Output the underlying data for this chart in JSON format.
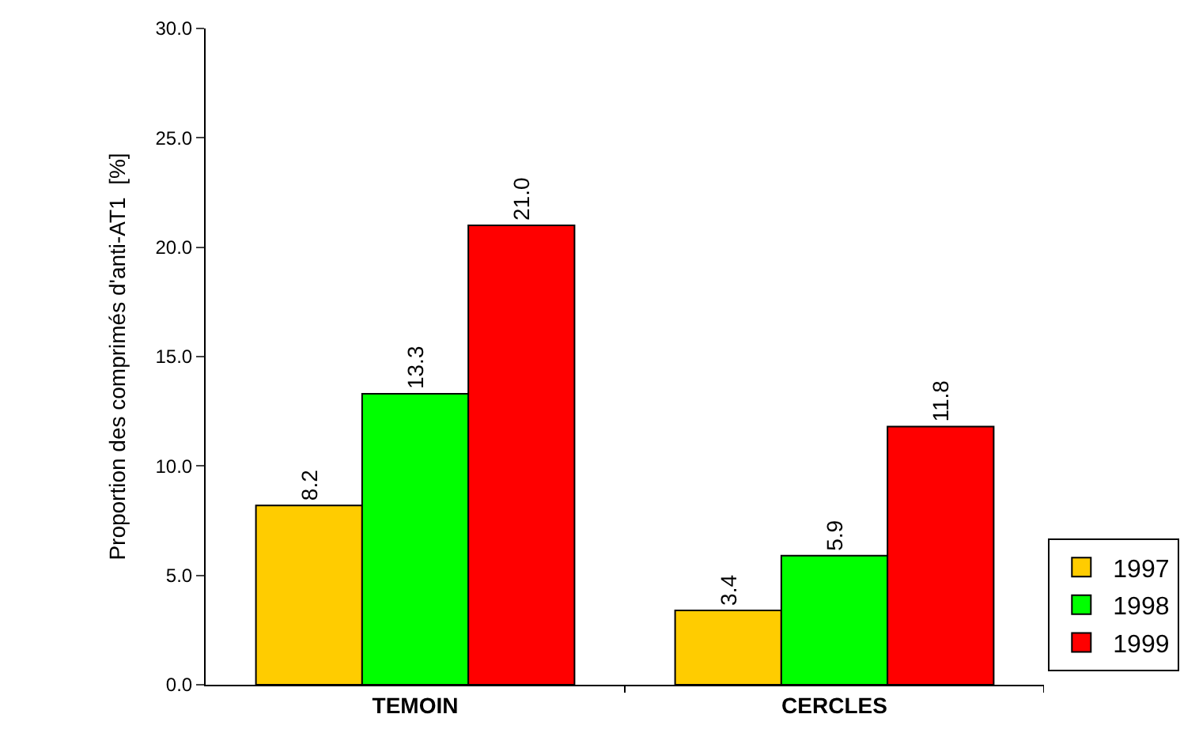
{
  "chart_data": {
    "type": "bar",
    "ylabel": "Proportion des comprimés d'anti-AT1  [%]",
    "categories": [
      "TEMOIN",
      "CERCLES"
    ],
    "series": [
      {
        "name": "1997",
        "color": "#ffcc00",
        "values": [
          8.2,
          3.4
        ],
        "value_labels": [
          "8.2",
          "3.4"
        ]
      },
      {
        "name": "1998",
        "color": "#00ff00",
        "values": [
          13.3,
          5.9
        ],
        "value_labels": [
          "13.3",
          "5.9"
        ]
      },
      {
        "name": "1999",
        "color": "#ff0000",
        "values": [
          21.0,
          11.8
        ],
        "value_labels": [
          "21.0",
          "11.8"
        ]
      }
    ],
    "ylim": [
      0,
      30
    ],
    "yticks": [
      {
        "value": 0,
        "label": "0.0"
      },
      {
        "value": 5,
        "label": "5.0"
      },
      {
        "value": 10,
        "label": "10.0"
      },
      {
        "value": 15,
        "label": "15.0"
      },
      {
        "value": 20,
        "label": "20.0"
      },
      {
        "value": 25,
        "label": "25.0"
      },
      {
        "value": 30,
        "label": "30.0"
      }
    ],
    "grid": false,
    "legend": "bottom right"
  }
}
